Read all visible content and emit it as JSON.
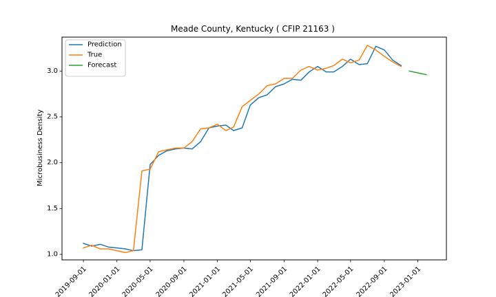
{
  "chart_data": {
    "type": "line",
    "title": "Meade County, Kentucky ( CFIP 21163 )",
    "xlabel": "",
    "ylabel": "Microbusiness Density",
    "x_range": [
      "2019-06-15",
      "2023-04-15"
    ],
    "ylim": [
      0.94,
      3.37
    ],
    "yticks": [
      1.0,
      1.5,
      2.0,
      2.5,
      3.0
    ],
    "ytick_labels": [
      "1.0",
      "1.5",
      "2.0",
      "2.5",
      "3.0"
    ],
    "xticks": [
      "2019-09-01",
      "2020-01-01",
      "2020-05-01",
      "2020-09-01",
      "2021-01-01",
      "2021-05-01",
      "2021-09-01",
      "2022-01-01",
      "2022-05-01",
      "2022-09-01",
      "2023-01-01"
    ],
    "grid": false,
    "legend": "top-left",
    "series": [
      {
        "name": "Prediction",
        "color": "#1f77b4",
        "x": [
          "2019-09-01",
          "2019-10-01",
          "2019-11-01",
          "2019-12-01",
          "2020-01-01",
          "2020-02-01",
          "2020-03-01",
          "2020-04-01",
          "2020-05-01",
          "2020-06-01",
          "2020-07-01",
          "2020-08-01",
          "2020-09-01",
          "2020-10-01",
          "2020-11-01",
          "2020-12-01",
          "2021-01-01",
          "2021-02-01",
          "2021-03-01",
          "2021-04-01",
          "2021-05-01",
          "2021-06-01",
          "2021-07-01",
          "2021-08-01",
          "2021-09-01",
          "2021-10-01",
          "2021-11-01",
          "2021-12-01",
          "2022-01-01",
          "2022-02-01",
          "2022-03-01",
          "2022-04-01",
          "2022-05-01",
          "2022-06-01",
          "2022-07-01",
          "2022-08-01",
          "2022-09-01",
          "2022-10-01",
          "2022-11-01"
        ],
        "y": [
          1.12,
          1.09,
          1.11,
          1.08,
          1.07,
          1.06,
          1.04,
          1.05,
          1.98,
          2.08,
          2.13,
          2.15,
          2.16,
          2.15,
          2.23,
          2.38,
          2.4,
          2.41,
          2.35,
          2.38,
          2.63,
          2.71,
          2.74,
          2.83,
          2.86,
          2.91,
          2.9,
          2.99,
          3.05,
          2.99,
          2.99,
          3.05,
          3.13,
          3.07,
          3.08,
          3.27,
          3.23,
          3.12,
          3.06
        ]
      },
      {
        "name": "True",
        "color": "#ff7f0e",
        "x": [
          "2019-09-01",
          "2019-10-01",
          "2019-11-01",
          "2019-12-01",
          "2020-01-01",
          "2020-02-01",
          "2020-03-01",
          "2020-04-01",
          "2020-05-01",
          "2020-06-01",
          "2020-07-01",
          "2020-08-01",
          "2020-09-01",
          "2020-10-01",
          "2020-11-01",
          "2020-12-01",
          "2021-01-01",
          "2021-02-01",
          "2021-03-01",
          "2021-04-01",
          "2021-05-01",
          "2021-06-01",
          "2021-07-01",
          "2021-08-01",
          "2021-09-01",
          "2021-10-01",
          "2021-11-01",
          "2021-12-01",
          "2022-01-01",
          "2022-02-01",
          "2022-03-01",
          "2022-04-01",
          "2022-05-01",
          "2022-06-01",
          "2022-07-01",
          "2022-08-01",
          "2022-09-01",
          "2022-10-01",
          "2022-11-01"
        ],
        "y": [
          1.07,
          1.1,
          1.06,
          1.06,
          1.04,
          1.02,
          1.04,
          1.91,
          1.93,
          2.12,
          2.14,
          2.16,
          2.16,
          2.23,
          2.37,
          2.38,
          2.42,
          2.35,
          2.39,
          2.61,
          2.68,
          2.75,
          2.84,
          2.86,
          2.92,
          2.92,
          3.01,
          3.05,
          3.01,
          3.03,
          3.06,
          3.13,
          3.09,
          3.12,
          3.28,
          3.23,
          3.16,
          3.1,
          3.05
        ]
      },
      {
        "name": "Forecast",
        "color": "#2ca02c",
        "x": [
          "2022-12-01",
          "2023-01-01",
          "2023-02-01"
        ],
        "y": [
          3.0,
          2.98,
          2.96
        ]
      }
    ]
  }
}
